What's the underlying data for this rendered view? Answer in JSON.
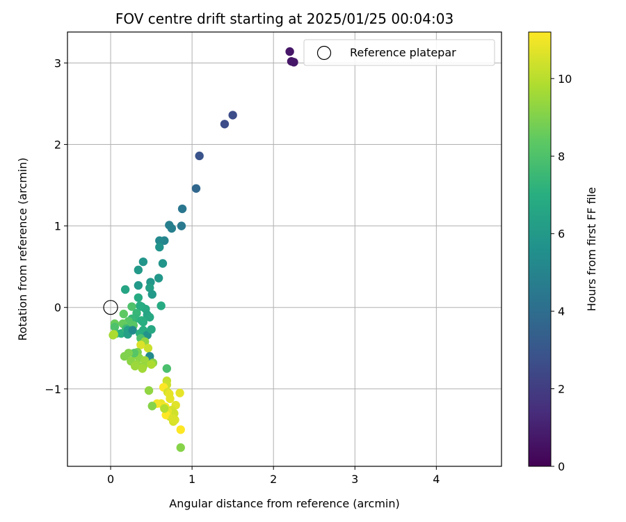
{
  "chart_data": {
    "type": "scatter",
    "title": "FOV centre drift starting at 2025/01/25 00:04:03",
    "xlabel": "Angular distance from reference (arcmin)",
    "ylabel": "Rotation from reference (arcmin)",
    "xlim": [
      -0.53,
      4.8
    ],
    "ylim": [
      -1.95,
      3.38
    ],
    "xticks": [
      0,
      1,
      2,
      3,
      4
    ],
    "yticks": [
      -1,
      0,
      1,
      2,
      3
    ],
    "grid": true,
    "legend": {
      "position": "top-right",
      "entries": [
        "Reference platepar"
      ]
    },
    "colorbar": {
      "label": "Hours from first FF file",
      "range": [
        0,
        11.2
      ],
      "ticks": [
        0,
        2,
        4,
        6,
        8,
        10
      ],
      "colormap": "viridis"
    },
    "reference": {
      "x": 0,
      "y": 0
    },
    "series": [
      {
        "x": [
          2.2,
          2.22,
          2.25,
          1.5,
          1.4,
          1.09,
          1.05,
          0.88,
          0.87,
          0.72,
          0.75,
          0.66,
          0.6,
          0.6,
          0.64,
          0.4,
          0.34,
          0.59,
          0.49,
          0.48,
          0.51,
          0.34,
          0.18,
          0.34,
          0.38,
          0.43,
          0.36,
          0.26,
          0.62,
          0.32,
          0.45,
          0.48,
          0.3,
          0.38,
          0.4,
          0.26,
          0.28,
          0.22,
          0.16,
          0.15,
          0.05,
          0.05,
          0.07,
          0.03,
          0.13,
          0.19,
          0.21,
          0.21,
          0.27,
          0.36,
          0.4,
          0.45,
          0.37,
          0.42,
          0.46,
          0.5,
          0.48,
          0.48,
          0.52,
          0.37,
          0.33,
          0.3,
          0.35,
          0.42,
          0.25,
          0.32,
          0.4,
          0.5,
          0.29,
          0.22,
          0.17,
          0.39,
          0.3,
          0.04,
          0.69,
          0.69,
          0.69,
          0.65,
          0.7,
          0.72,
          0.73,
          0.62,
          0.57,
          0.67,
          0.85,
          0.8,
          0.75,
          0.78,
          0.73,
          0.7,
          0.68,
          0.77,
          0.86,
          0.79,
          0.76,
          0.66,
          0.47,
          0.51,
          0.86
        ],
        "y": [
          3.14,
          3.02,
          3.01,
          2.36,
          2.25,
          1.86,
          1.46,
          1.21,
          1.0,
          1.01,
          0.97,
          0.82,
          0.82,
          0.74,
          0.54,
          0.56,
          0.46,
          0.36,
          0.31,
          0.24,
          0.16,
          0.27,
          0.22,
          0.12,
          0.01,
          -0.02,
          0.02,
          0.01,
          0.02,
          -0.07,
          -0.09,
          -0.12,
          -0.14,
          -0.16,
          -0.18,
          -0.14,
          -0.22,
          -0.17,
          -0.08,
          -0.2,
          -0.2,
          -0.24,
          -0.32,
          -0.34,
          -0.32,
          -0.26,
          -0.28,
          -0.33,
          -0.28,
          -0.32,
          -0.28,
          -0.34,
          -0.38,
          -0.42,
          -0.5,
          -0.27,
          -0.6,
          -0.64,
          -0.68,
          -0.46,
          -0.55,
          -0.58,
          -0.62,
          -0.65,
          -0.66,
          -0.7,
          -0.72,
          -0.7,
          -0.56,
          -0.56,
          -0.6,
          -0.75,
          -0.72,
          -0.33,
          -0.75,
          -0.9,
          -0.95,
          -0.98,
          -1.04,
          -1.06,
          -1.12,
          -1.18,
          -1.18,
          -1.22,
          -1.05,
          -1.2,
          -1.26,
          -1.3,
          -1.34,
          -1.28,
          -1.32,
          -1.4,
          -1.5,
          -1.38,
          -1.36,
          -1.24,
          -1.02,
          -1.21,
          -1.72
        ],
        "c": [
          0.7,
          0.7,
          0.7,
          2.6,
          2.6,
          2.9,
          3.7,
          4.4,
          4.5,
          4.8,
          4.8,
          5.0,
          5.2,
          5.7,
          5.8,
          5.8,
          6.0,
          5.9,
          5.9,
          6.3,
          6.0,
          6.0,
          6.5,
          6.8,
          6.6,
          6.8,
          6.9,
          8.0,
          6.8,
          7.4,
          6.5,
          6.7,
          7.3,
          7.1,
          7.0,
          7.4,
          8.3,
          8.2,
          8.4,
          8.5,
          8.6,
          8.0,
          7.8,
          9.6,
          7.0,
          7.6,
          6.3,
          6.3,
          5.3,
          7.1,
          7.0,
          5.7,
          8.0,
          9.3,
          10.3,
          6.7,
          5.3,
          5.3,
          9.2,
          10.6,
          8.9,
          9.2,
          9.2,
          9.5,
          9.2,
          9.4,
          9.4,
          9.8,
          8.2,
          9.0,
          9.0,
          9.6,
          9.5,
          9.8,
          7.9,
          10.2,
          10.3,
          11.2,
          10.5,
          10.8,
          10.8,
          10.9,
          11.0,
          11.1,
          10.8,
          10.7,
          10.5,
          10.4,
          10.3,
          10.8,
          11.2,
          10.5,
          11.2,
          10.6,
          10.6,
          9.9,
          9.3,
          9.1,
          9.1
        ]
      }
    ]
  }
}
